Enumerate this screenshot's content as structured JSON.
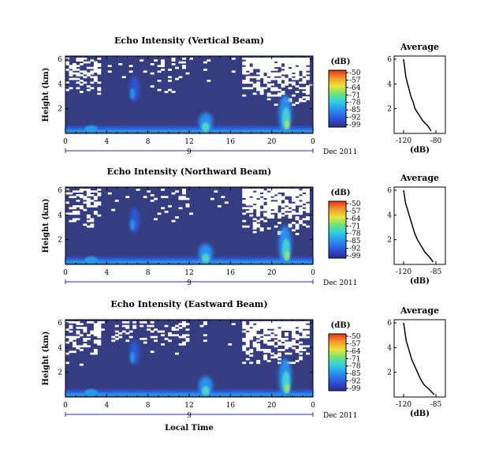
{
  "chart_data": [
    {
      "type": "heatmap",
      "title": "Echo Intensity (Vertical Beam)",
      "ylabel": "Height (km)",
      "xlabel": "",
      "x_ticks": [
        "0",
        "4",
        "8",
        "12",
        "16",
        "20",
        "0"
      ],
      "y_ticks": [
        "6",
        "4",
        "2"
      ],
      "date_label": "9",
      "date_suffix": "Dec 2011",
      "colorbar": {
        "title": "(dB)",
        "ticks": [
          "-50",
          "-57",
          "-64",
          "-71",
          "-78",
          "-85",
          "-92",
          "-99"
        ]
      },
      "avg_profile": {
        "title": "Average",
        "xlabel": "(dB)",
        "x_ticks": [
          "-120",
          "-80"
        ],
        "y_ticks": [
          "6",
          "4",
          "2"
        ],
        "heights_km": [
          0.2,
          0.6,
          1.0,
          1.5,
          2.0,
          2.5,
          3.0,
          3.5,
          4.0,
          4.5,
          5.0,
          5.5,
          6.0
        ],
        "values_db": [
          -86,
          -90,
          -96,
          -101,
          -106,
          -108,
          -111,
          -113,
          -115,
          -117,
          -118,
          -119,
          -120
        ]
      }
    },
    {
      "type": "heatmap",
      "title": "Echo Intensity (Northward Beam)",
      "ylabel": "Height (km)",
      "xlabel": "",
      "x_ticks": [
        "0",
        "4",
        "8",
        "12",
        "16",
        "20",
        "0"
      ],
      "y_ticks": [
        "6",
        "4",
        "2"
      ],
      "date_label": "9",
      "date_suffix": "Dec 2011",
      "colorbar": {
        "title": "(dB)",
        "ticks": [
          "-50",
          "-57",
          "-64",
          "-71",
          "-78",
          "-85",
          "-92",
          "-99"
        ]
      },
      "avg_profile": {
        "title": "Average",
        "xlabel": "(dB)",
        "x_ticks": [
          "-120",
          "-85"
        ],
        "y_ticks": [
          "6",
          "4",
          "2"
        ],
        "heights_km": [
          0.2,
          0.6,
          1.0,
          1.5,
          2.0,
          2.5,
          3.0,
          3.5,
          4.0,
          4.5,
          5.0,
          5.5,
          6.0
        ],
        "values_db": [
          -88,
          -92,
          -97,
          -101,
          -105,
          -108,
          -110,
          -112,
          -114,
          -116,
          -118,
          -119,
          -120
        ]
      }
    },
    {
      "type": "heatmap",
      "title": "Echo Intensity (Eastward Beam)",
      "ylabel": "Height (km)",
      "xlabel": "Local Time",
      "x_ticks": [
        "0",
        "4",
        "8",
        "12",
        "16",
        "20",
        "0"
      ],
      "y_ticks": [
        "6",
        "4",
        "2"
      ],
      "date_label": "9",
      "date_suffix": "Dec 2011",
      "colorbar": {
        "title": "(dB)",
        "ticks": [
          "-50",
          "-57",
          "-64",
          "-71",
          "-78",
          "-85",
          "-92",
          "-99"
        ]
      },
      "avg_profile": {
        "title": "Average",
        "xlabel": "(dB)",
        "x_ticks": [
          "-120",
          "-85"
        ],
        "y_ticks": [
          "6",
          "4",
          "2"
        ],
        "heights_km": [
          0.2,
          0.6,
          1.0,
          1.5,
          2.0,
          2.5,
          3.0,
          3.5,
          4.0,
          4.5,
          5.0,
          5.5,
          6.0
        ],
        "values_db": [
          -87,
          -92,
          -98,
          -102,
          -105,
          -108,
          -111,
          -113,
          -115,
          -117,
          -118,
          -119,
          -120
        ]
      }
    }
  ]
}
